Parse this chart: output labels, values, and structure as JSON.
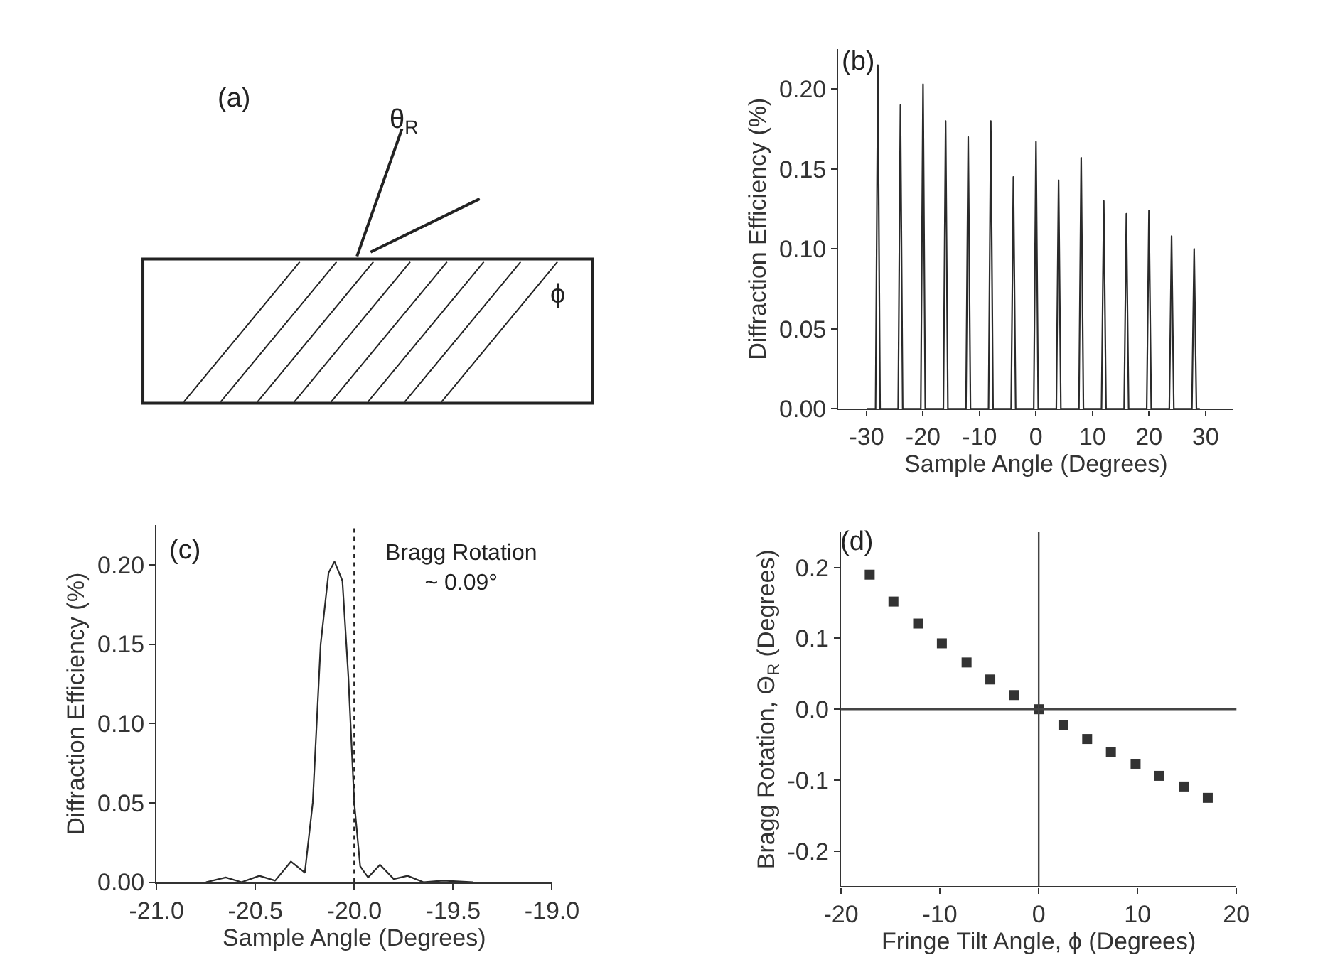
{
  "chart_data": [
    {
      "type": "other",
      "annotations": [
        "(a)",
        "θ$_{R}$",
        "ϕ"
      ]
    },
    {
      "type": "line",
      "xlabel": "Sample Angle (Degrees)",
      "ylabel": "Diffraction Efficiency (%)",
      "annotations": [
        "(b)"
      ],
      "xlim": [
        -35,
        35
      ],
      "xticks": [
        -30,
        -20,
        -10,
        0,
        10,
        20,
        30
      ],
      "ylim": [
        0,
        0.225
      ],
      "yticks": [
        {
          "value": 0,
          "label": "0.00"
        },
        0.05,
        {
          "value": 0.1,
          "label": "0.10"
        },
        0.15,
        {
          "value": 0.2,
          "label": "0.20"
        }
      ],
      "series": [
        {
          "color": "#2a2a2a",
          "x": [
            -30,
            -28.4,
            -28,
            -27.6,
            -24.4,
            -24,
            -23.6,
            -20.4,
            -20,
            -19.6,
            -16.4,
            -16,
            -15.6,
            -12.4,
            -12,
            -11.6,
            -8.4,
            -8,
            -7.6,
            -4.4,
            -4,
            -3.6,
            -0.4,
            0,
            0.4,
            3.6,
            4,
            4.4,
            7.6,
            8,
            8.4,
            11.6,
            12,
            12.4,
            15.6,
            16,
            16.4,
            19.6,
            20,
            20.4,
            23.6,
            24,
            24.4,
            27.6,
            28,
            28.4,
            29
          ],
          "values": [
            0,
            0,
            0.215,
            0,
            0,
            0.19,
            0,
            0,
            0.203,
            0,
            0,
            0.18,
            0,
            0,
            0.17,
            0,
            0,
            0.18,
            0,
            0,
            0.145,
            0,
            0,
            0.167,
            0,
            0,
            0.143,
            0,
            0,
            0.157,
            0,
            0,
            0.13,
            0,
            0,
            0.122,
            0,
            0,
            0.124,
            0,
            0,
            0.108,
            0,
            0,
            0.1,
            0,
            0
          ]
        }
      ]
    },
    {
      "type": "line",
      "xlabel": "Sample Angle (Degrees)",
      "ylabel": "Diffraction Efficiency (%)",
      "annotations": [
        "(c)",
        "Bragg Rotation\n~ 0.09°"
      ],
      "xlim": [
        -21,
        -19
      ],
      "xticks": [
        {
          "value": -21,
          "label": "-21.0"
        },
        -20.5,
        {
          "value": -20,
          "label": "-20.0"
        },
        -19.5,
        {
          "value": -19,
          "label": "-19.0"
        }
      ],
      "ylim": [
        0,
        0.225
      ],
      "yticks": [
        {
          "value": 0,
          "label": "0.00"
        },
        0.05,
        {
          "value": 0.1,
          "label": "0.10"
        },
        0.15,
        {
          "value": 0.2,
          "label": "0.20"
        }
      ],
      "ref_lines": [
        {
          "axis": "x",
          "value": -20.0,
          "label": null,
          "line_style": "dotted",
          "color": "#222222"
        }
      ],
      "series": [
        {
          "color": "#2a2a2a",
          "x": [
            -20.75,
            -20.65,
            -20.57,
            -20.48,
            -20.4,
            -20.32,
            -20.25,
            -20.21,
            -20.17,
            -20.13,
            -20.1,
            -20.06,
            -20.03,
            -20.0,
            -19.97,
            -19.93,
            -19.87,
            -19.8,
            -19.73,
            -19.65,
            -19.55,
            -19.4
          ],
          "values": [
            0,
            0.003,
            0,
            0.004,
            0.001,
            0.013,
            0.006,
            0.05,
            0.15,
            0.195,
            0.202,
            0.19,
            0.13,
            0.05,
            0.01,
            0.003,
            0.011,
            0.002,
            0.004,
            0,
            0.001,
            0
          ]
        }
      ]
    },
    {
      "type": "scatter",
      "xlabel": "Fringe Tilt Angle, ϕ (Degrees)",
      "ylabel": "Bragg Rotation, Θ$_{R}$ (Degrees)",
      "annotations": [
        "(d)"
      ],
      "xlim": [
        -20,
        20
      ],
      "xticks": [
        -20,
        -10,
        0,
        10,
        20
      ],
      "ylim": [
        -0.25,
        0.25
      ],
      "yticks": [
        -0.2,
        -0.1,
        {
          "value": 0,
          "label": "0.0"
        },
        0.1,
        0.2
      ],
      "marker": "square",
      "ref_lines": [
        {
          "axis": "x",
          "value": 0,
          "label": null,
          "color": "#444444"
        },
        {
          "axis": "y",
          "value": 0,
          "label": null,
          "color": "#444444"
        }
      ],
      "series": [
        {
          "color": "#333333",
          "x": [
            -17.1,
            -14.7,
            -12.2,
            -9.8,
            -7.3,
            -4.9,
            -2.5,
            0,
            2.5,
            4.9,
            7.3,
            9.8,
            12.2,
            14.7,
            17.1
          ],
          "values": [
            0.19,
            0.152,
            0.121,
            0.093,
            0.066,
            0.042,
            0.02,
            0,
            -0.022,
            -0.042,
            -0.06,
            -0.077,
            -0.094,
            -0.109,
            -0.125
          ]
        }
      ]
    }
  ]
}
